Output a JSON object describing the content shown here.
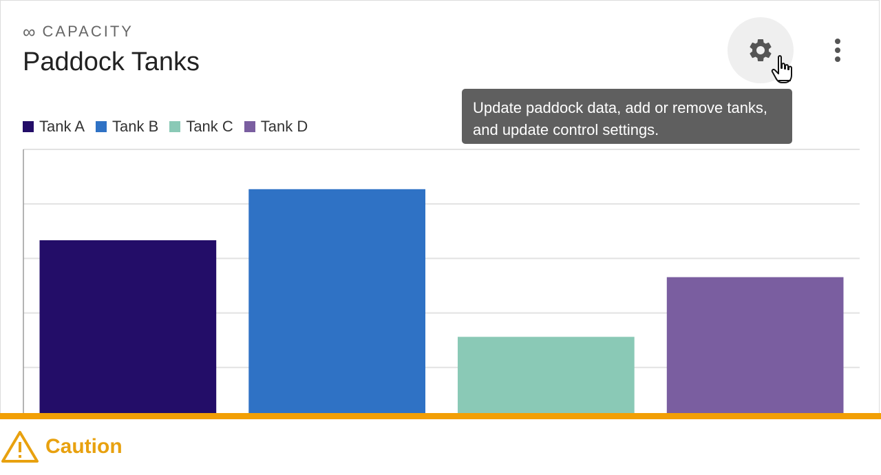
{
  "header": {
    "eyebrow_icon": "infinity-icon",
    "eyebrow_symbol": "∞",
    "eyebrow": "CAPACITY",
    "title": "Paddock Tanks"
  },
  "toolbar": {
    "settings_icon": "gear-icon",
    "more_icon": "more-vertical-icon"
  },
  "tooltip": {
    "line1": "Update paddock data, add or remove tanks,",
    "line2": "and update control settings."
  },
  "chart_data": {
    "type": "bar",
    "categories": [
      "Tank A",
      "Tank B",
      "Tank C",
      "Tank D"
    ],
    "values": [
      3.2,
      4.1,
      1.5,
      2.55
    ],
    "colors": [
      "#230d68",
      "#2f72c5",
      "#8ac9b6",
      "#7a5ea0"
    ],
    "ylim": [
      0,
      4.8
    ],
    "grid": true,
    "legend": "top-left"
  },
  "status": {
    "icon": "warning-icon",
    "label": "Caution",
    "color": "#f29f05"
  }
}
